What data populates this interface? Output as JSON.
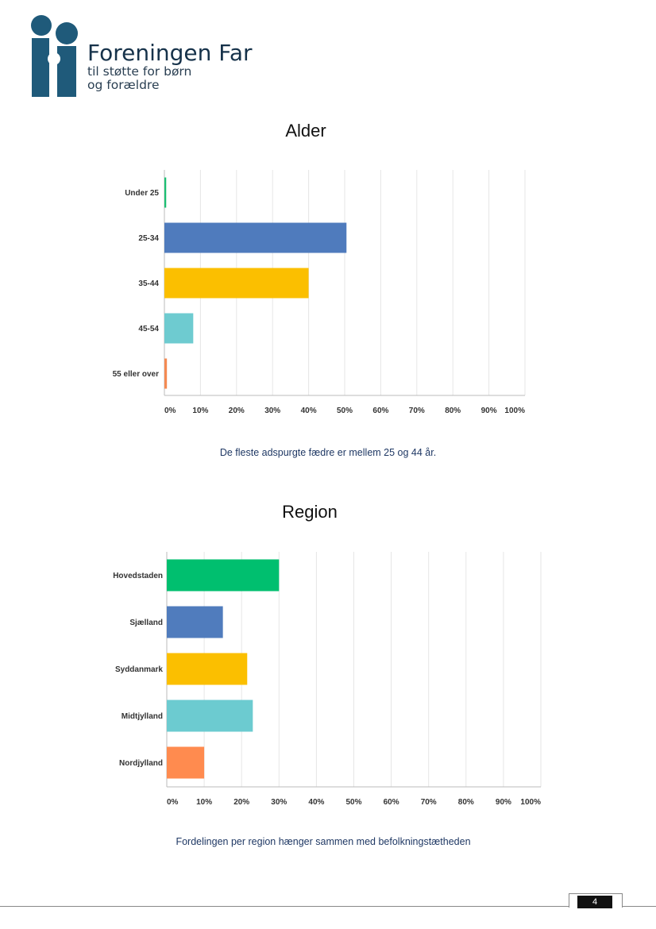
{
  "logo": {
    "title": "Foreningen Far",
    "line1": "til støtte for børn",
    "line2": "og forældre",
    "color": "#1f5a7a"
  },
  "page_number": "4",
  "captions": {
    "age": "De fleste adspurgte fædre er mellem 25 og 44 år.",
    "region": "Fordelingen per region hænger sammen med befolkningstætheden"
  },
  "chart_data": [
    {
      "type": "bar",
      "orientation": "horizontal",
      "title": "Alder",
      "categories": [
        "Under 25",
        "25-34",
        "35-44",
        "45-54",
        "55 eller over"
      ],
      "values": [
        0.5,
        50.5,
        40,
        8,
        0.7
      ],
      "colors": [
        "#1cbf73",
        "#4f7bbd",
        "#fbbf00",
        "#6ecbd0",
        "#f48a52"
      ],
      "xlim": [
        0,
        100
      ],
      "xticks": [
        "0%",
        "10%",
        "20%",
        "30%",
        "40%",
        "50%",
        "60%",
        "70%",
        "80%",
        "90%",
        "100%"
      ],
      "grid": true
    },
    {
      "type": "bar",
      "orientation": "horizontal",
      "title": "Region",
      "categories": [
        "Hovedstaden",
        "Sjælland",
        "Syddanmark",
        "Midtjylland",
        "Nordjylland"
      ],
      "values": [
        30,
        15,
        21.5,
        23,
        10
      ],
      "colors": [
        "#00bf6f",
        "#507cbd",
        "#fbbf00",
        "#6ccbd0",
        "#ff8b4f"
      ],
      "xlim": [
        0,
        100
      ],
      "xticks": [
        "0%",
        "10%",
        "20%",
        "30%",
        "40%",
        "50%",
        "60%",
        "70%",
        "80%",
        "90%",
        "100%"
      ],
      "grid": true
    }
  ]
}
